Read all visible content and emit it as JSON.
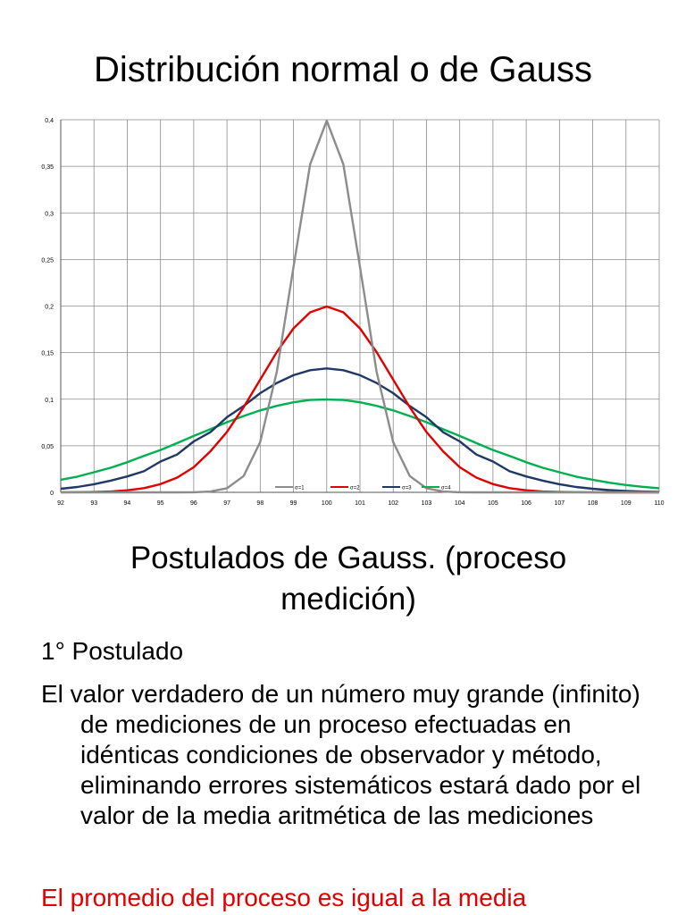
{
  "slide": {
    "title": "Distribución normal o de Gauss",
    "subtitle_line1": "Postulados de Gauss. (proceso",
    "subtitle_line2": "medición)",
    "postulado_label": "1° Postulado",
    "body": "El valor verdadero de un número muy grande (infinito) de mediciones de un proceso efectuadas en idénticas condiciones de observador y método, eliminando errores sistemáticos  estará dado por el valor de la media aritmética de las mediciones",
    "highlight": "El promedio del proceso es igual a la media",
    "highlight_color": "#e00000"
  },
  "chart_data": {
    "type": "line",
    "title": "",
    "xlabel": "",
    "ylabel": "",
    "xlim": [
      92,
      110
    ],
    "ylim": [
      0,
      0.4
    ],
    "x_ticks": [
      "92",
      "93",
      "94",
      "95",
      "96",
      "97",
      "98",
      "99",
      "100",
      "101",
      "102",
      "103",
      "104",
      "105",
      "106",
      "107",
      "108",
      "109",
      "110"
    ],
    "y_ticks": [
      "0",
      "0,05",
      "0,1",
      "0,15",
      "0,2",
      "0,25",
      "0,3",
      "0,35",
      "0,4"
    ],
    "grid": true,
    "legend_position": "bottom-inside",
    "x": [
      92,
      92.5,
      93,
      93.5,
      94,
      94.5,
      95,
      95.5,
      96,
      96.5,
      97,
      97.5,
      98,
      98.5,
      99,
      99.5,
      100,
      100.5,
      101,
      101.5,
      102,
      102.5,
      103,
      103.5,
      104,
      104.5,
      105,
      105.5,
      106,
      106.5,
      107,
      107.5,
      108,
      108.5,
      109,
      109.5,
      110
    ],
    "series": [
      {
        "name": "σ=1",
        "color": "#8c8c8c",
        "values": [
          0,
          0,
          0,
          0,
          0,
          0,
          0,
          0,
          0.0001,
          0.0009,
          0.0044,
          0.0175,
          0.054,
          0.1295,
          0.242,
          0.3521,
          0.3989,
          0.3521,
          0.242,
          0.1295,
          0.054,
          0.0175,
          0.0044,
          0.0009,
          0.0001,
          0,
          0,
          0,
          0,
          0,
          0,
          0,
          0,
          0,
          0,
          0,
          0
        ]
      },
      {
        "name": "σ=2",
        "color": "#e00000",
        "values": [
          0.0001,
          0.0002,
          0.0004,
          0.0009,
          0.0022,
          0.0045,
          0.0088,
          0.0158,
          0.027,
          0.044,
          0.0648,
          0.0913,
          0.121,
          0.1506,
          0.176,
          0.1933,
          0.1995,
          0.1933,
          0.176,
          0.1506,
          0.121,
          0.0913,
          0.0648,
          0.044,
          0.027,
          0.0158,
          0.0088,
          0.0045,
          0.0022,
          0.0009,
          0.0004,
          0.0002,
          0.0001,
          0,
          0,
          0,
          0
        ]
      },
      {
        "name": "σ=3",
        "color": "#1f3864",
        "values": [
          0.0038,
          0.0058,
          0.0087,
          0.0126,
          0.0171,
          0.0226,
          0.0331,
          0.0406,
          0.0547,
          0.0646,
          0.0807,
          0.0927,
          0.1065,
          0.1174,
          0.1258,
          0.1311,
          0.133,
          0.1311,
          0.1258,
          0.1174,
          0.1065,
          0.0927,
          0.0807,
          0.0646,
          0.0547,
          0.0406,
          0.0331,
          0.0226,
          0.0171,
          0.0126,
          0.0087,
          0.0058,
          0.0038,
          0.0024,
          0.0015,
          0.0009,
          0.0005
        ]
      },
      {
        "name": "σ=4",
        "color": "#00b050",
        "values": [
          0.0135,
          0.0169,
          0.0216,
          0.0264,
          0.0323,
          0.0391,
          0.0455,
          0.0529,
          0.0605,
          0.0677,
          0.0753,
          0.0819,
          0.088,
          0.0929,
          0.0967,
          0.0992,
          0.0997,
          0.0992,
          0.0967,
          0.0929,
          0.088,
          0.0819,
          0.0753,
          0.0677,
          0.0605,
          0.0529,
          0.0455,
          0.0391,
          0.0323,
          0.0264,
          0.0216,
          0.0169,
          0.0135,
          0.0104,
          0.0079,
          0.0059,
          0.0044
        ]
      }
    ]
  }
}
